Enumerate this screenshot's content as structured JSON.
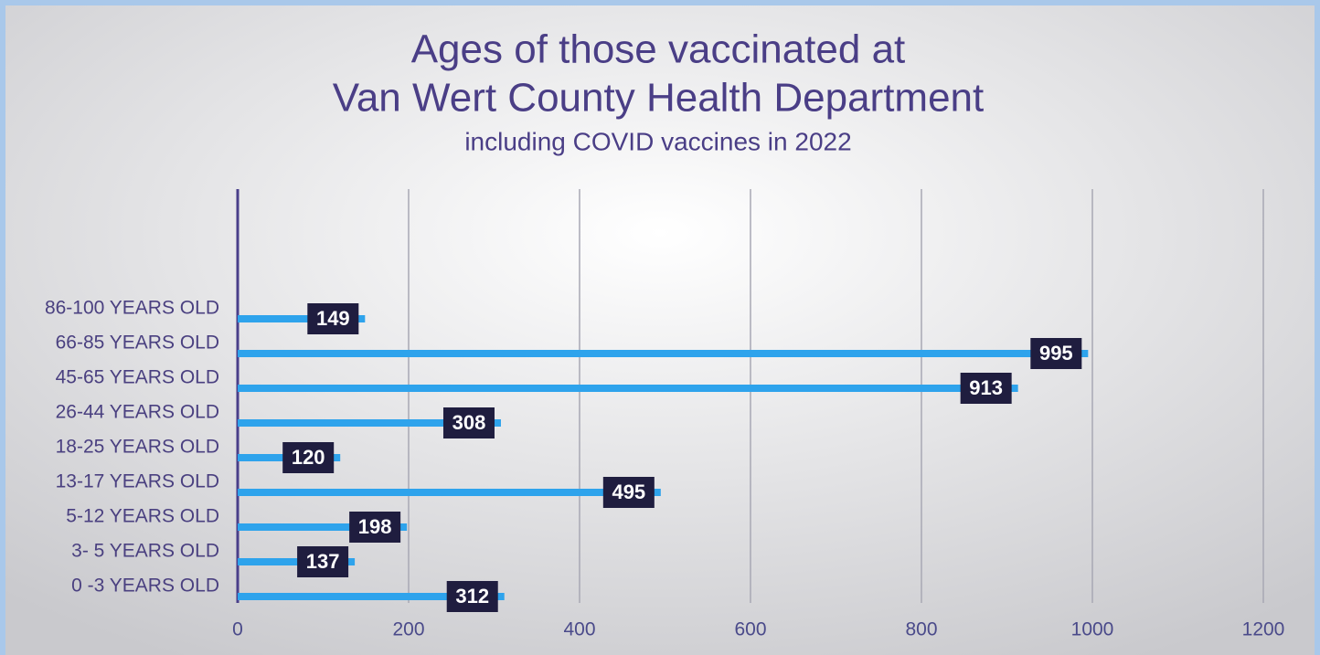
{
  "chart_data": {
    "type": "hbar",
    "title": [
      "Ages of those vaccinated at",
      "Van Wert County Health Department"
    ],
    "subtitle": "including COVID vaccines in 2022",
    "categories": [
      "0 -3 YEARS OLD",
      "3- 5 YEARS OLD",
      "5-12 YEARS OLD",
      "13-17 YEARS OLD",
      "18-25 YEARS OLD",
      "26-44 YEARS OLD",
      "45-65 YEARS OLD",
      "66-85 YEARS OLD",
      "86-100 YEARS OLD"
    ],
    "values": [
      312,
      137,
      198,
      495,
      120,
      308,
      913,
      995,
      149
    ],
    "color": "#2ea3ec",
    "xlim": [
      0,
      1200
    ],
    "xticks": [
      0,
      200,
      400,
      600,
      800,
      1000,
      1200
    ],
    "grid": true
  }
}
